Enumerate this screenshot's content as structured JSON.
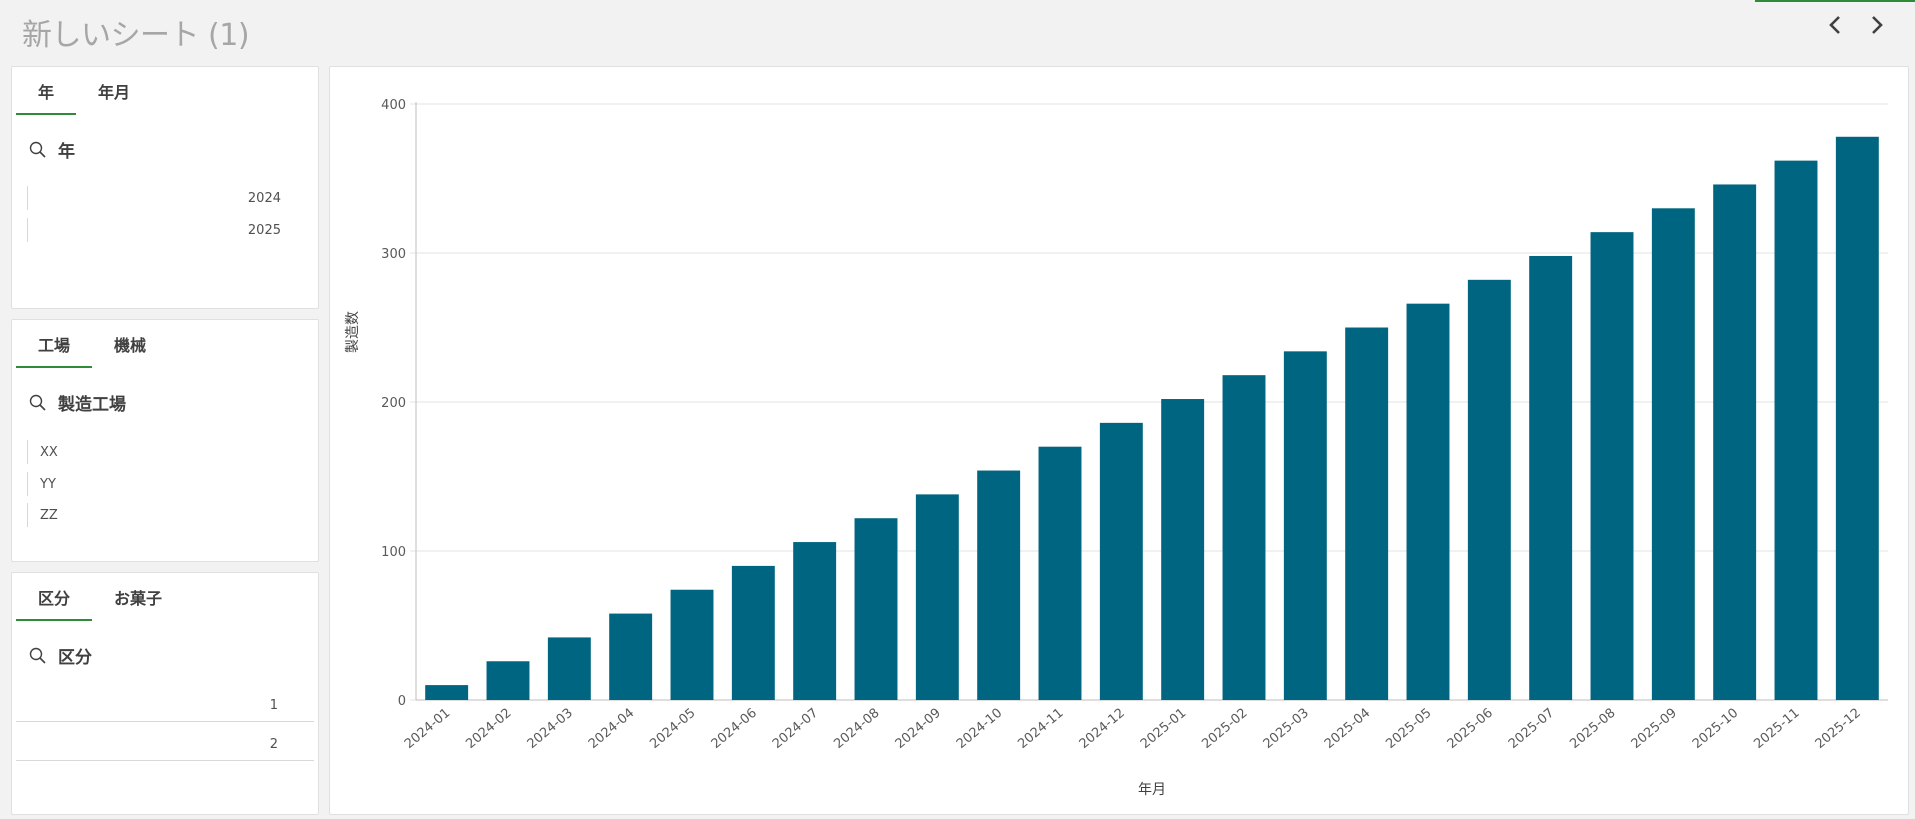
{
  "sheet": {
    "title": "新しいシート (1)"
  },
  "icons": {
    "prev": "chevron-left-icon",
    "next": "chevron-right-icon",
    "search": "search-icon"
  },
  "colors": {
    "accent": "#2e8b3a",
    "bar": "#006580"
  },
  "panel_year": {
    "tabs": [
      "年",
      "年月"
    ],
    "search_label": "年",
    "items": [
      "2024",
      "2025"
    ]
  },
  "panel_factory": {
    "tabs": [
      "工場",
      "機械"
    ],
    "search_label": "製造工場",
    "items": [
      "XX",
      "YY",
      "ZZ"
    ]
  },
  "panel_category": {
    "tabs": [
      "区分",
      "お菓子"
    ],
    "search_label": "区分",
    "items": [
      "1",
      "2"
    ]
  },
  "chart_data": {
    "type": "bar",
    "xlabel": "年月",
    "ylabel": "製造数",
    "ylim": [
      0,
      400
    ],
    "yticks": [
      0,
      100,
      200,
      300,
      400
    ],
    "grid": true,
    "categories": [
      "2024-01",
      "2024-02",
      "2024-03",
      "2024-04",
      "2024-05",
      "2024-06",
      "2024-07",
      "2024-08",
      "2024-09",
      "2024-10",
      "2024-11",
      "2024-12",
      "2025-01",
      "2025-02",
      "2025-03",
      "2025-04",
      "2025-05",
      "2025-06",
      "2025-07",
      "2025-08",
      "2025-09",
      "2025-10",
      "2025-11",
      "2025-12"
    ],
    "values": [
      10,
      26,
      42,
      58,
      74,
      90,
      106,
      122,
      138,
      154,
      170,
      186,
      202,
      218,
      234,
      250,
      266,
      282,
      298,
      314,
      330,
      346,
      362,
      378
    ]
  }
}
